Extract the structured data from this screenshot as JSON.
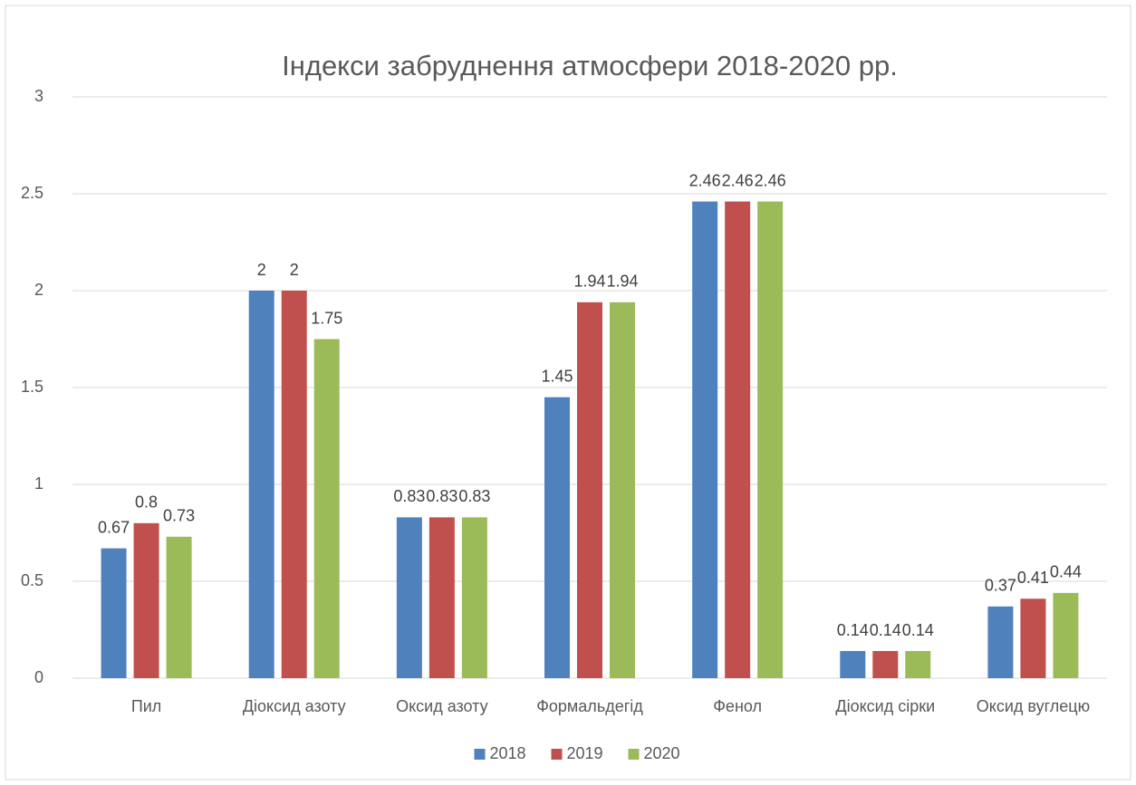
{
  "chart_data": {
    "type": "bar",
    "title": "Індекси забруднення атмосфери 2018-2020 рр.",
    "categories": [
      "Пил",
      "Діоксид азоту",
      "Оксид азоту",
      "Формальдегід",
      "Фенол",
      "Діоксид сірки",
      "Оксид вуглецю"
    ],
    "series": [
      {
        "name": "2018",
        "color": "#4f81bd",
        "values": [
          0.67,
          2,
          0.83,
          1.45,
          2.46,
          0.14,
          0.37
        ]
      },
      {
        "name": "2019",
        "color": "#c0504d",
        "values": [
          0.8,
          2,
          0.83,
          1.94,
          2.46,
          0.14,
          0.41
        ]
      },
      {
        "name": "2020",
        "color": "#9bbb59",
        "values": [
          0.73,
          1.75,
          0.83,
          1.94,
          2.46,
          0.14,
          0.44
        ]
      }
    ],
    "ylim": [
      0,
      3
    ],
    "yticks": [
      0,
      0.5,
      1,
      1.5,
      2,
      2.5,
      3
    ],
    "grid": true,
    "legend": "bottom"
  }
}
